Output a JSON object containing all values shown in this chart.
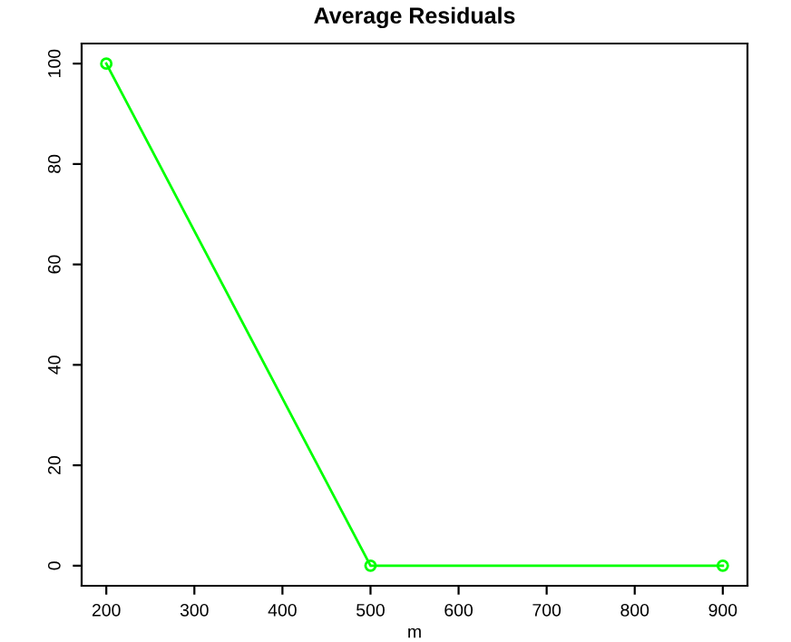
{
  "chart_data": {
    "type": "line",
    "title": "Average Residuals",
    "xlabel": "m",
    "x": [
      200,
      500,
      900
    ],
    "series": [
      {
        "color": "#00ff00",
        "values": [
          100,
          0,
          0
        ]
      }
    ],
    "xlim": [
      172,
      928
    ],
    "xticks": [
      200,
      300,
      400,
      500,
      600,
      700,
      800,
      900
    ],
    "ylim": [
      -4,
      104
    ],
    "yticks": [
      0,
      20,
      40,
      60,
      80,
      100
    ],
    "marker": "circle",
    "line_style": "solid",
    "grid": false
  }
}
